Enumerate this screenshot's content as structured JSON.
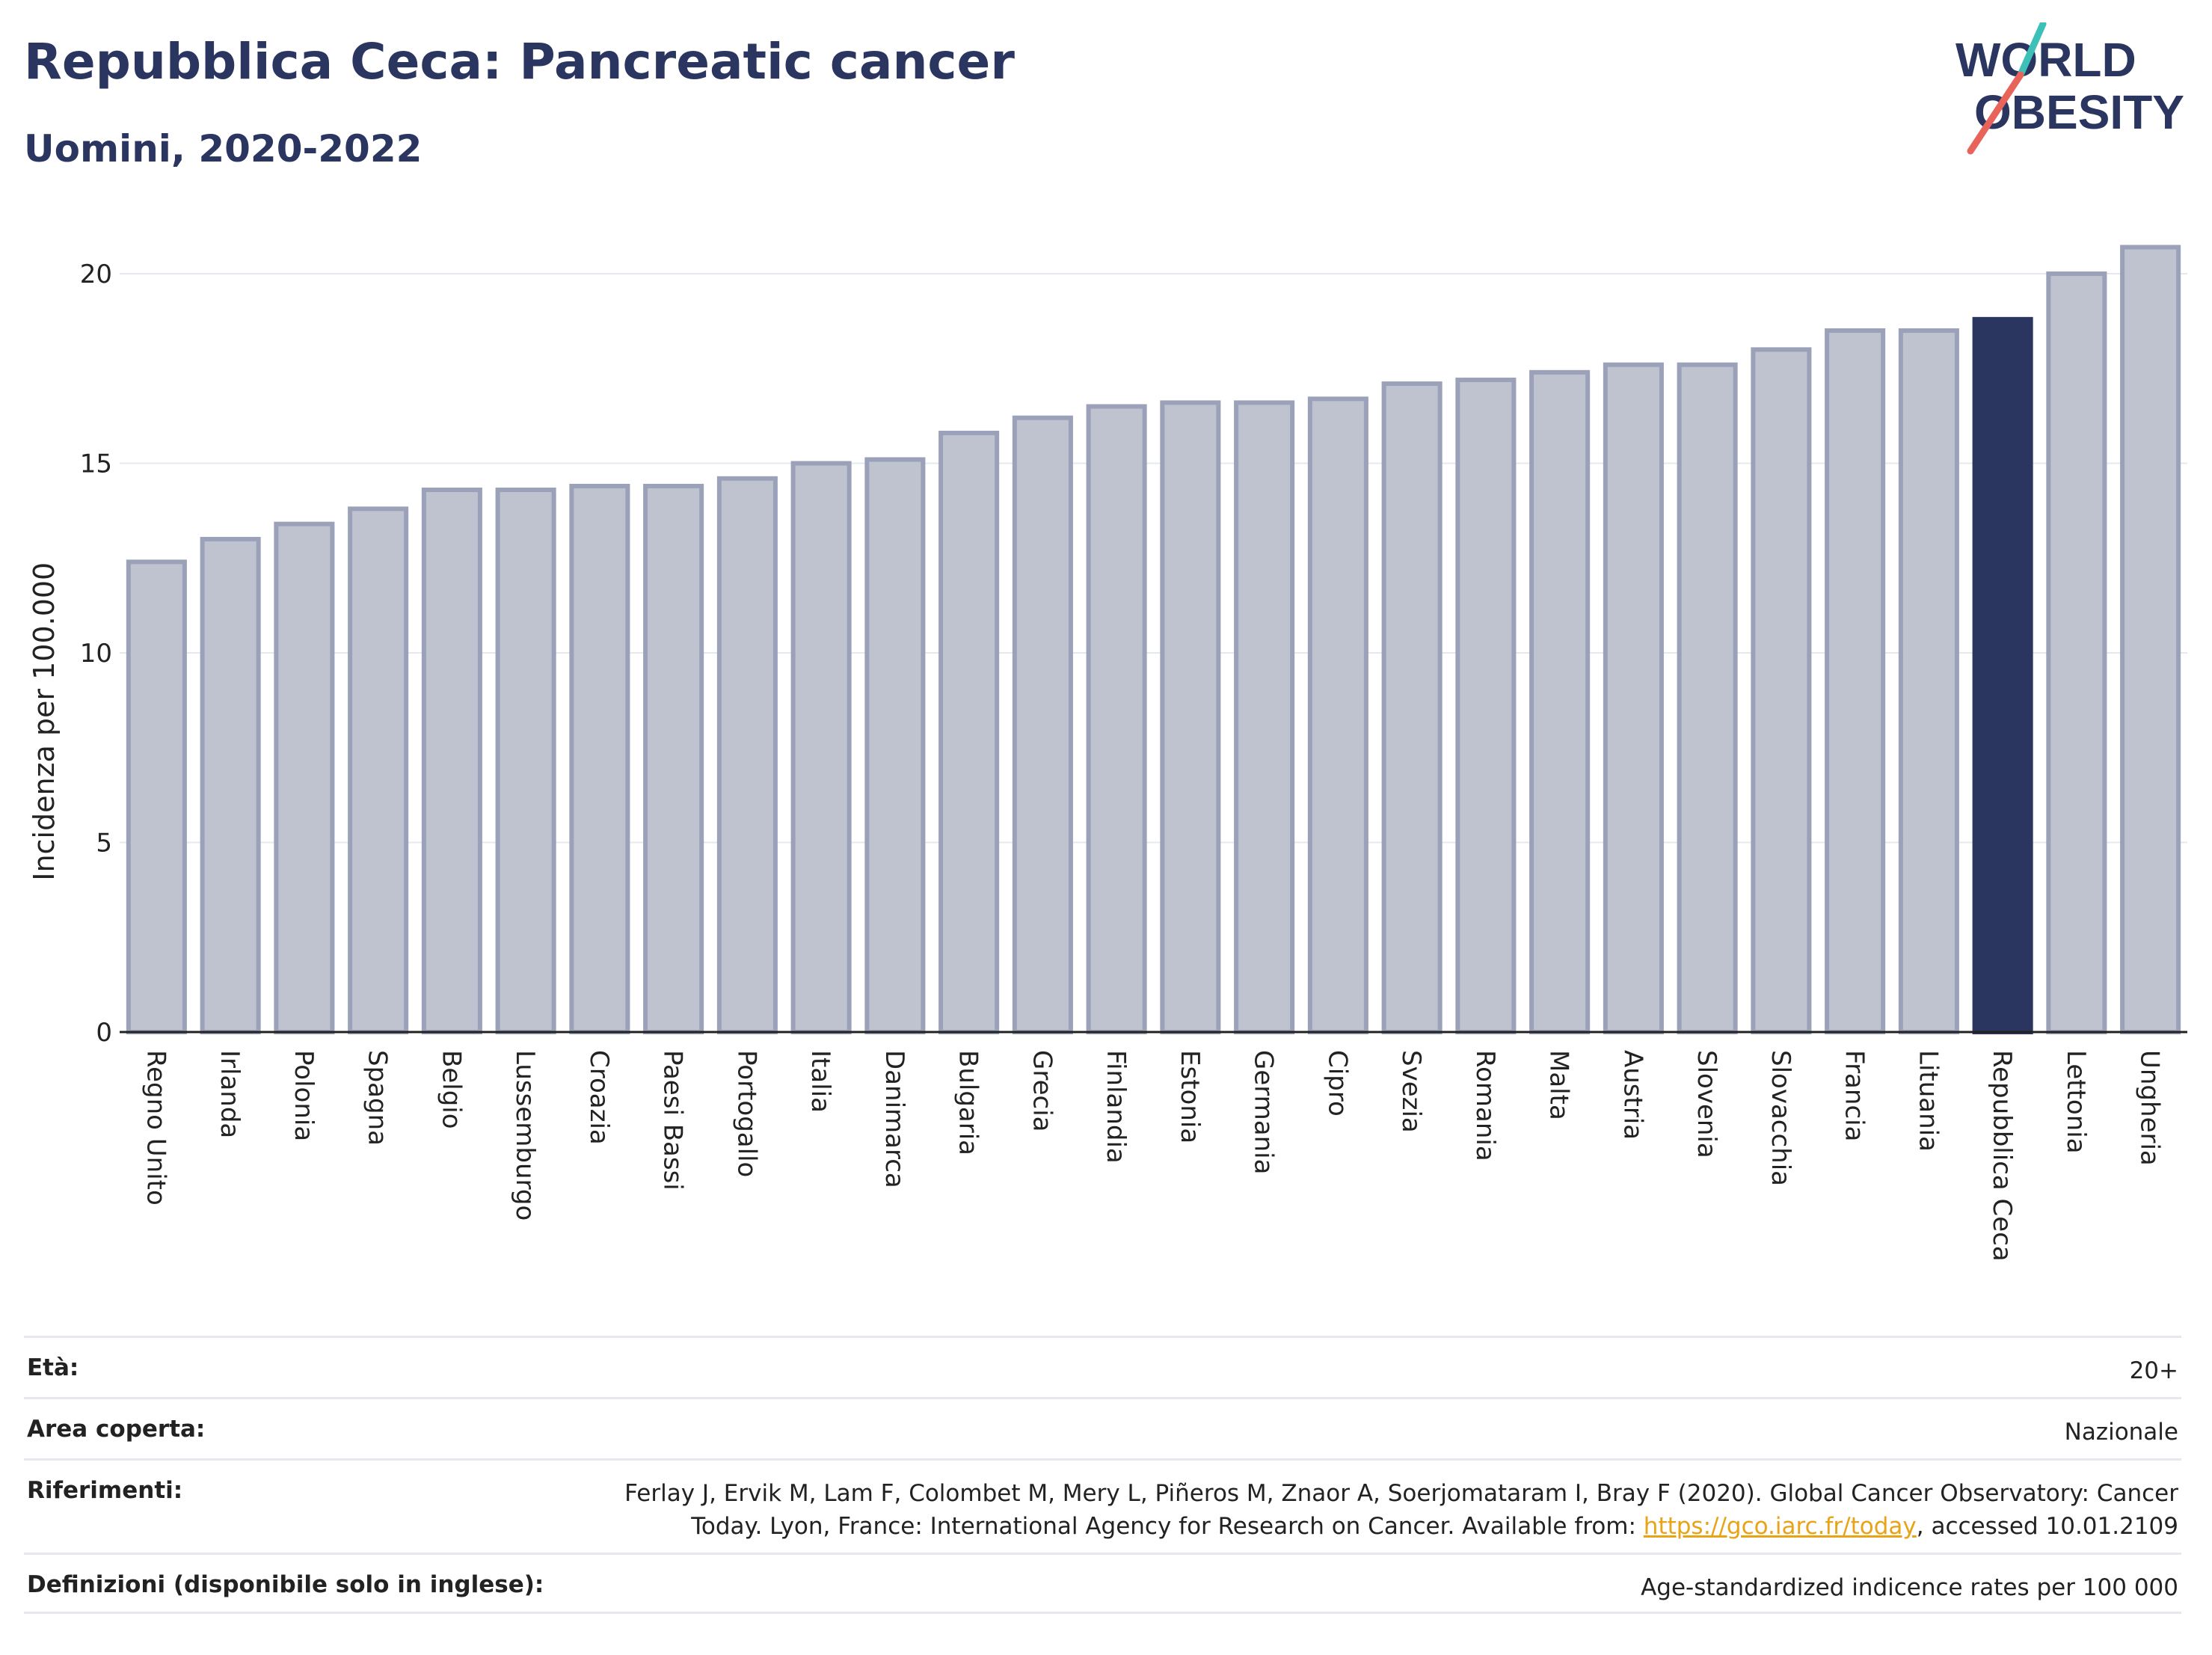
{
  "header": {
    "title": "Repubblica Ceca: Pancreatic cancer",
    "subtitle": "Uomini, 2020-2022"
  },
  "logo": {
    "line1": "WORLD",
    "line2": "OBESITY",
    "accent_colors": [
      "#3cc0b8",
      "#e8645a"
    ]
  },
  "chart_data": {
    "type": "bar",
    "ylabel": "Incidenza per 100.000",
    "xlabel": "",
    "ylim": [
      0,
      21
    ],
    "yticks": [
      0,
      5,
      10,
      15,
      20
    ],
    "grid": true,
    "categories": [
      "Regno Unito",
      "Irlanda",
      "Polonia",
      "Spagna",
      "Belgio",
      "Lussemburgo",
      "Croazia",
      "Paesi Bassi",
      "Portogallo",
      "Italia",
      "Danimarca",
      "Bulgaria",
      "Grecia",
      "Finlandia",
      "Estonia",
      "Germania",
      "Cipro",
      "Svezia",
      "Romania",
      "Malta",
      "Austria",
      "Slovenia",
      "Slovacchia",
      "Francia",
      "Lituania",
      "Repubblica Ceca",
      "Lettonia",
      "Ungheria"
    ],
    "values": [
      12.4,
      13.0,
      13.4,
      13.8,
      14.3,
      14.3,
      14.4,
      14.4,
      14.6,
      15.0,
      15.1,
      15.8,
      16.2,
      16.5,
      16.6,
      16.6,
      16.7,
      17.1,
      17.2,
      17.4,
      17.6,
      17.6,
      18.0,
      18.5,
      18.5,
      18.8,
      20.0,
      20.7
    ],
    "highlight": "Repubblica Ceca",
    "colors": {
      "bar": "#bfc3d0",
      "bar_border": "#9aa1b8",
      "highlight": "#2a3560",
      "grid": "#e6e8ef",
      "axis": "#222222"
    }
  },
  "meta": [
    {
      "label": "Età:",
      "value": "20+"
    },
    {
      "label": "Area coperta:",
      "value": "Nazionale"
    },
    {
      "label": "Riferimenti:",
      "value_line1": "Ferlay J, Ervik M, Lam F, Colombet M, Mery L, Piñeros M, Znaor A, Soerjomataram I, Bray F (2020). Global Cancer Observatory: Cancer",
      "value_line2_pre": "Today. Lyon, France: International Agency for Research on Cancer. Available from: ",
      "link": "https://gco.iarc.fr/today",
      "value_line2_post": ", accessed 10.01.2109"
    },
    {
      "label": "Definizioni (disponibile solo in inglese):",
      "value": "Age-standardized indicence rates per 100 000"
    }
  ]
}
